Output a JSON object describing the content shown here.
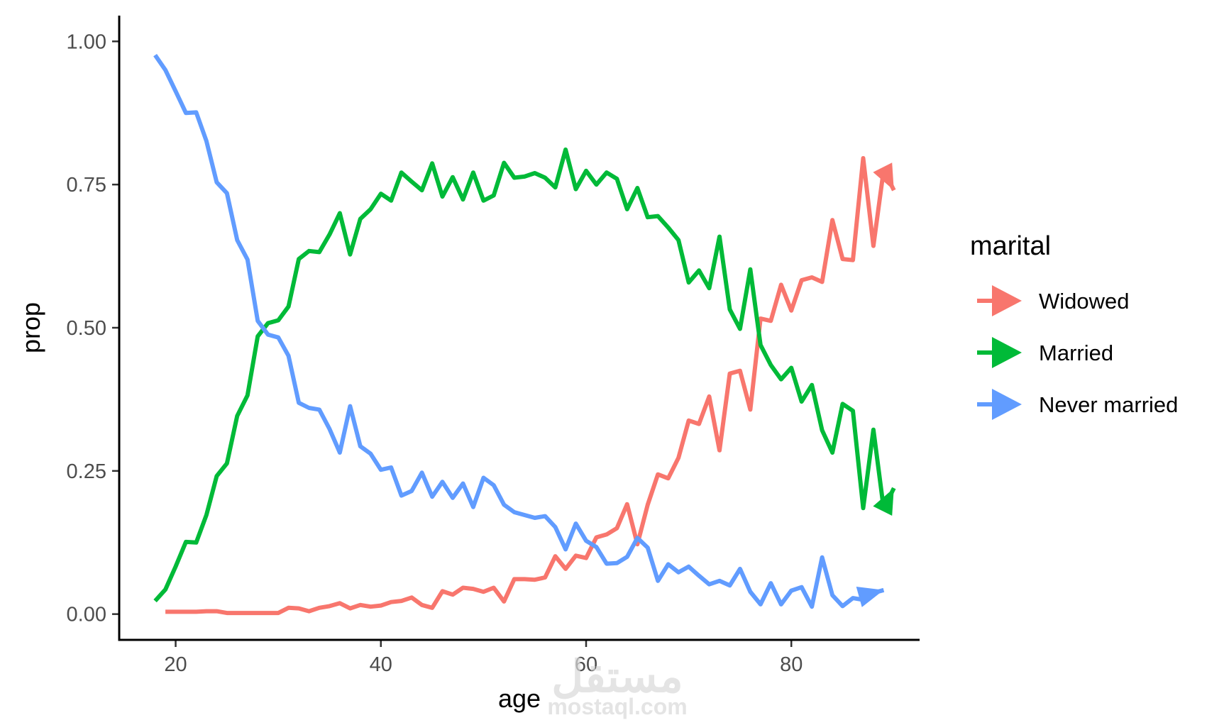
{
  "chart_data": {
    "type": "line",
    "title": "",
    "xlabel": "age",
    "ylabel": "prop",
    "xlim": [
      14.5,
      92.5
    ],
    "ylim": [
      -0.045,
      1.045
    ],
    "x_ticks": [
      20,
      40,
      60,
      80
    ],
    "x_tick_labels": [
      "20",
      "40",
      "60",
      "80"
    ],
    "y_ticks": [
      0,
      0.25,
      0.5,
      0.75,
      1
    ],
    "y_tick_labels": [
      "0.00",
      "0.25",
      "0.50",
      "0.75",
      "1.00"
    ],
    "grid": false,
    "legend": {
      "title": "marital",
      "position": "right"
    },
    "series": [
      {
        "name": "Widowed",
        "color": "#F8766D",
        "arrow_end": true,
        "x": [
          19,
          20,
          21,
          22,
          23,
          24,
          25,
          26,
          27,
          28,
          29,
          30,
          31,
          32,
          33,
          34,
          35,
          36,
          37,
          38,
          39,
          40,
          41,
          42,
          43,
          44,
          45,
          46,
          47,
          48,
          49,
          50,
          51,
          52,
          53,
          54,
          55,
          56,
          57,
          58,
          59,
          60,
          61,
          62,
          63,
          64,
          65,
          66,
          67,
          68,
          69,
          70,
          71,
          72,
          73,
          74,
          75,
          76,
          77,
          78,
          79,
          80,
          81,
          82,
          83,
          84,
          85,
          86,
          87,
          88,
          89,
          90
        ],
        "values": [
          0.004,
          0.004,
          0.004,
          0.004,
          0.005,
          0.005,
          0.002,
          0.002,
          0.002,
          0.002,
          0.002,
          0.002,
          0.011,
          0.01,
          0.005,
          0.011,
          0.014,
          0.019,
          0.01,
          0.016,
          0.013,
          0.015,
          0.021,
          0.023,
          0.029,
          0.016,
          0.011,
          0.04,
          0.034,
          0.046,
          0.044,
          0.039,
          0.046,
          0.022,
          0.061,
          0.061,
          0.06,
          0.064,
          0.101,
          0.079,
          0.102,
          0.098,
          0.134,
          0.139,
          0.15,
          0.192,
          0.122,
          0.191,
          0.244,
          0.237,
          0.273,
          0.338,
          0.332,
          0.38,
          0.286,
          0.42,
          0.425,
          0.357,
          0.516,
          0.512,
          0.575,
          0.53,
          0.583,
          0.588,
          0.58,
          0.688,
          0.62,
          0.618,
          0.796,
          0.643,
          0.776,
          0.74
        ]
      },
      {
        "name": "Married",
        "color": "#00BA38",
        "arrow_end": true,
        "x": [
          18,
          19,
          20,
          21,
          22,
          23,
          24,
          25,
          26,
          27,
          28,
          29,
          30,
          31,
          32,
          33,
          34,
          35,
          36,
          37,
          38,
          39,
          40,
          41,
          42,
          43,
          44,
          45,
          46,
          47,
          48,
          49,
          50,
          51,
          52,
          53,
          54,
          55,
          56,
          57,
          58,
          59,
          60,
          61,
          62,
          63,
          64,
          65,
          66,
          67,
          68,
          69,
          70,
          71,
          72,
          73,
          74,
          75,
          76,
          77,
          78,
          79,
          80,
          81,
          82,
          83,
          84,
          85,
          86,
          87,
          88,
          89,
          90
        ],
        "values": [
          0.023,
          0.043,
          0.083,
          0.126,
          0.125,
          0.173,
          0.241,
          0.263,
          0.346,
          0.382,
          0.485,
          0.508,
          0.513,
          0.537,
          0.62,
          0.634,
          0.632,
          0.663,
          0.7,
          0.628,
          0.69,
          0.707,
          0.734,
          0.722,
          0.771,
          0.755,
          0.74,
          0.787,
          0.729,
          0.763,
          0.724,
          0.771,
          0.722,
          0.731,
          0.788,
          0.762,
          0.764,
          0.77,
          0.762,
          0.745,
          0.811,
          0.742,
          0.774,
          0.75,
          0.771,
          0.76,
          0.707,
          0.744,
          0.693,
          0.695,
          0.675,
          0.653,
          0.579,
          0.6,
          0.569,
          0.659,
          0.532,
          0.498,
          0.602,
          0.47,
          0.435,
          0.41,
          0.43,
          0.371,
          0.4,
          0.321,
          0.282,
          0.367,
          0.355,
          0.185,
          0.322,
          0.184,
          0.22
        ]
      },
      {
        "name": "Never married",
        "color": "#619CFF",
        "arrow_end": true,
        "x": [
          18,
          19,
          20,
          21,
          22,
          23,
          24,
          25,
          26,
          27,
          28,
          29,
          30,
          31,
          32,
          33,
          34,
          35,
          36,
          37,
          38,
          39,
          40,
          41,
          42,
          43,
          44,
          45,
          46,
          47,
          48,
          49,
          50,
          51,
          52,
          53,
          54,
          55,
          56,
          57,
          58,
          59,
          60,
          61,
          62,
          63,
          64,
          65,
          66,
          67,
          68,
          69,
          70,
          71,
          72,
          73,
          74,
          75,
          76,
          77,
          78,
          79,
          80,
          81,
          82,
          83,
          84,
          85,
          86,
          87,
          88,
          89
        ],
        "values": [
          0.976,
          0.95,
          0.913,
          0.875,
          0.876,
          0.826,
          0.754,
          0.735,
          0.653,
          0.619,
          0.512,
          0.488,
          0.483,
          0.451,
          0.369,
          0.36,
          0.357,
          0.323,
          0.282,
          0.363,
          0.293,
          0.28,
          0.252,
          0.256,
          0.207,
          0.215,
          0.247,
          0.205,
          0.231,
          0.203,
          0.228,
          0.187,
          0.238,
          0.225,
          0.191,
          0.178,
          0.173,
          0.168,
          0.171,
          0.152,
          0.113,
          0.158,
          0.128,
          0.117,
          0.088,
          0.089,
          0.1,
          0.133,
          0.116,
          0.058,
          0.087,
          0.073,
          0.083,
          0.067,
          0.052,
          0.058,
          0.05,
          0.079,
          0.039,
          0.017,
          0.054,
          0.017,
          0.041,
          0.047,
          0.013,
          0.099,
          0.033,
          0.014,
          0.028,
          0.025,
          0.037,
          0.042
        ]
      }
    ]
  },
  "watermark": {
    "arabic": "مستقل",
    "latin": "mostaql.com"
  }
}
